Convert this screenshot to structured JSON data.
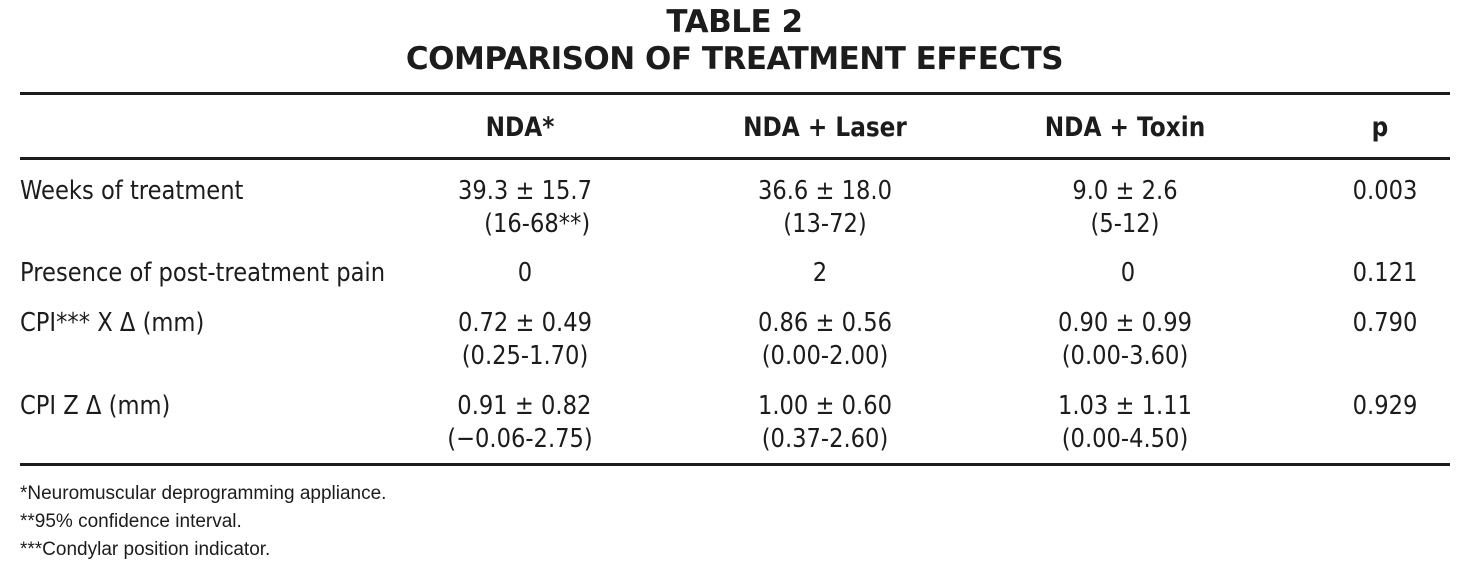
{
  "title": {
    "line1": "TABLE 2",
    "line2": "COMPARISON OF TREATMENT EFFECTS"
  },
  "table": {
    "columns": [
      "",
      "NDA*",
      "NDA + Laser",
      "NDA + Toxin",
      "p"
    ],
    "rows": [
      {
        "label": "Weeks of treatment",
        "nda": [
          "39.3 ± 15.7",
          "(16-68**)"
        ],
        "laser": [
          "36.6 ± 18.0",
          "(13-72)"
        ],
        "toxin": [
          "9.0 ± 2.6",
          "(5-12)"
        ],
        "p": "0.003"
      },
      {
        "label": "Presence of post-treatment pain",
        "nda": [
          "0"
        ],
        "laser": [
          "2"
        ],
        "toxin": [
          "0"
        ],
        "p": "0.121"
      },
      {
        "label": "CPI*** X Δ (mm)",
        "nda": [
          "0.72 ± 0.49",
          "(0.25-1.70)"
        ],
        "laser": [
          "0.86 ± 0.56",
          "(0.00-2.00)"
        ],
        "toxin": [
          "0.90 ± 0.99",
          "(0.00-3.60)"
        ],
        "p": "0.790"
      },
      {
        "label": "CPI Z Δ (mm)",
        "nda": [
          "0.91 ± 0.82",
          "(−0.06-2.75)"
        ],
        "laser": [
          "1.00 ± 0.60",
          "(0.37-2.60)"
        ],
        "toxin": [
          "1.03 ± 1.11",
          "(0.00-4.50)"
        ],
        "p": "0.929"
      }
    ]
  },
  "footnotes": [
    "*Neuromuscular deprogramming appliance.",
    "**95% confidence interval.",
    "***Condylar position indicator."
  ]
}
